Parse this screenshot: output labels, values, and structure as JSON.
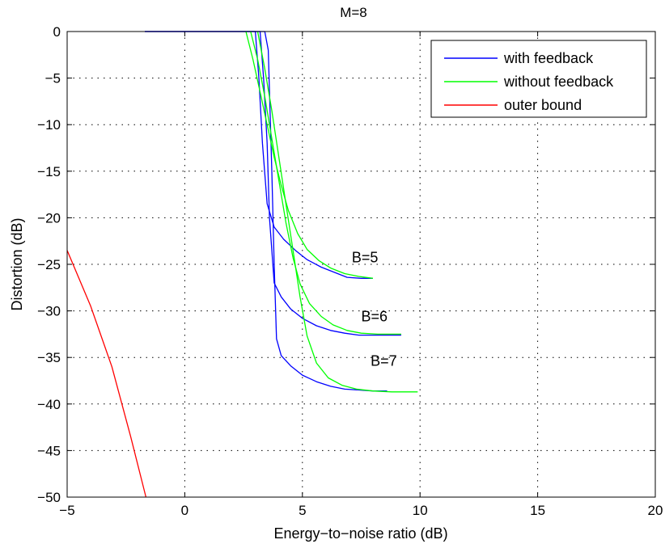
{
  "chart_data": {
    "type": "line",
    "title": "M=8",
    "xlabel": "Energy−to−noise ratio (dB)",
    "ylabel": "Distortion (dB)",
    "xlim": [
      -5,
      20
    ],
    "ylim": [
      -50,
      0
    ],
    "xticks": [
      -5,
      0,
      5,
      10,
      15,
      20
    ],
    "xtick_labels": [
      "−5",
      "0",
      "5",
      "10",
      "15",
      "20"
    ],
    "yticks": [
      0,
      -5,
      -10,
      -15,
      -20,
      -25,
      -30,
      -35,
      -40,
      -45,
      -50
    ],
    "ytick_labels": [
      "0",
      "−5",
      "−10",
      "−15",
      "−20",
      "−25",
      "−30",
      "−35",
      "−40",
      "−45",
      "−50"
    ],
    "grid": true,
    "legend_position": "top-right",
    "legend": [
      {
        "label": "with feedback",
        "color": "#0000ff"
      },
      {
        "label": "without feedback",
        "color": "#00ff00"
      },
      {
        "label": "outer bound",
        "color": "#ff0000"
      }
    ],
    "annotations": [
      {
        "text": "B=5",
        "x": 7.1,
        "y": -24.8
      },
      {
        "text": "B=6",
        "x": 7.5,
        "y": -31.1
      },
      {
        "text": "B=7",
        "x": 7.9,
        "y": -35.9
      }
    ],
    "series": [
      {
        "group": "with feedback",
        "color": "#0000ff",
        "label": "B=5",
        "x": [
          -1.7,
          2.8,
          3.0,
          3.15,
          3.3,
          3.5,
          3.8,
          4.2,
          4.7,
          5.2,
          5.8,
          6.4,
          6.9,
          7.5,
          8.0
        ],
        "y": [
          0,
          0,
          0,
          -5,
          -12,
          -18.5,
          -21,
          -22.3,
          -23.5,
          -24.5,
          -25.3,
          -25.9,
          -26.4,
          -26.5,
          -26.5
        ]
      },
      {
        "group": "with feedback",
        "color": "#0000ff",
        "label": "B=6",
        "x": [
          -1.7,
          3.0,
          3.2,
          3.35,
          3.5,
          3.6,
          3.8,
          4.1,
          4.5,
          5.0,
          5.6,
          6.2,
          6.8,
          7.4,
          8.0,
          8.6,
          9.2
        ],
        "y": [
          0,
          0,
          0,
          -5,
          -12,
          -20,
          -27,
          -28.5,
          -29.8,
          -30.8,
          -31.6,
          -32.1,
          -32.4,
          -32.6,
          -32.6,
          -32.6,
          -32.6
        ]
      },
      {
        "group": "with feedback",
        "color": "#0000ff",
        "label": "B=7",
        "x": [
          -1.7,
          3.2,
          3.4,
          3.55,
          3.7,
          3.8,
          3.9,
          4.1,
          4.5,
          5.0,
          5.6,
          6.2,
          6.8,
          7.4,
          8.0,
          8.6
        ],
        "y": [
          0,
          0,
          0,
          -2,
          -15,
          -25,
          -33,
          -34.8,
          -35.9,
          -36.9,
          -37.6,
          -38.1,
          -38.4,
          -38.5,
          -38.6,
          -38.6
        ]
      },
      {
        "group": "without feedback",
        "color": "#00ff00",
        "label": "B=5",
        "x": [
          2.6,
          2.9,
          3.2,
          3.5,
          3.8,
          4.1,
          4.4,
          4.8,
          5.2,
          5.7,
          6.2,
          6.8,
          7.4,
          8.0
        ],
        "y": [
          0,
          -3,
          -6.5,
          -10,
          -13.5,
          -16.5,
          -19.2,
          -21.7,
          -23.4,
          -24.6,
          -25.4,
          -26.0,
          -26.3,
          -26.5
        ]
      },
      {
        "group": "without feedback",
        "color": "#00ff00",
        "label": "B=6",
        "x": [
          2.8,
          3.1,
          3.4,
          3.7,
          4.0,
          4.3,
          4.6,
          4.9,
          5.3,
          5.8,
          6.3,
          6.9,
          7.5,
          8.2,
          9.2
        ],
        "y": [
          0,
          -3,
          -7,
          -11.5,
          -16,
          -20.5,
          -24.3,
          -27.1,
          -29.2,
          -30.6,
          -31.5,
          -32.1,
          -32.4,
          -32.5,
          -32.5
        ]
      },
      {
        "group": "without feedback",
        "color": "#00ff00",
        "label": "B=7",
        "x": [
          3.1,
          3.4,
          3.7,
          4.0,
          4.3,
          4.6,
          4.9,
          5.2,
          5.6,
          6.1,
          6.7,
          7.3,
          8.0,
          8.8,
          9.9
        ],
        "y": [
          0,
          -4,
          -8.5,
          -13.5,
          -18.5,
          -23.5,
          -28.5,
          -32.7,
          -35.6,
          -37.2,
          -38.0,
          -38.4,
          -38.6,
          -38.7,
          -38.7
        ]
      },
      {
        "group": "outer bound",
        "color": "#ff0000",
        "label": "outer bound",
        "x": [
          -5,
          -4.0,
          -3.1,
          -2.3,
          -1.65
        ],
        "y": [
          -23.5,
          -29.5,
          -36,
          -43.5,
          -50
        ]
      }
    ]
  }
}
